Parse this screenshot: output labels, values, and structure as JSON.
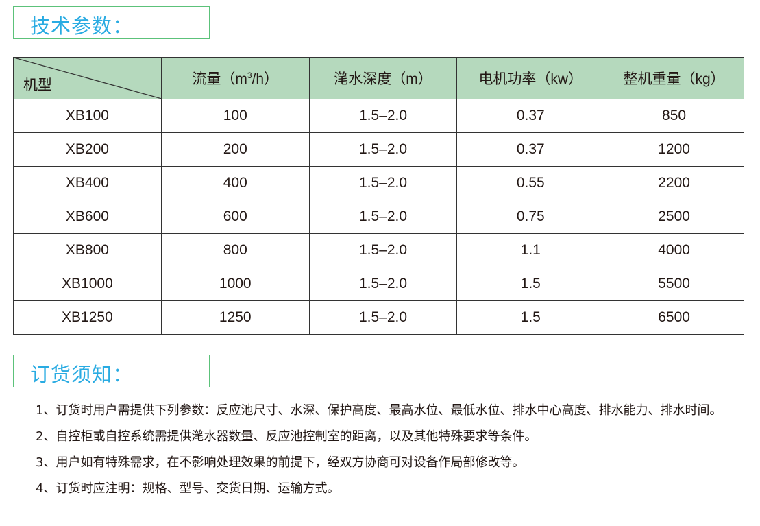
{
  "section1": {
    "title": "技术参数："
  },
  "table": {
    "header": {
      "model": "机型",
      "flow": "流量（m",
      "flow_sup": "3",
      "flow_end": "/h）",
      "depth": "滗水深度（m）",
      "power": "电机功率（kw）",
      "weight": "整机重量（kg）"
    },
    "rows": [
      [
        "XB100",
        "100",
        "1.5–2.0",
        "0.37",
        "850"
      ],
      [
        "XB200",
        "200",
        "1.5–2.0",
        "0.37",
        "1200"
      ],
      [
        "XB400",
        "400",
        "1.5–2.0",
        "0.55",
        "2200"
      ],
      [
        "XB600",
        "600",
        "1.5–2.0",
        "0.75",
        "2500"
      ],
      [
        "XB800",
        "800",
        "1.5–2.0",
        "1.1",
        "4000"
      ],
      [
        "XB1000",
        "1000",
        "1.5–2.0",
        "1.5",
        "5500"
      ],
      [
        "XB1250",
        "1250",
        "1.5–2.0",
        "1.5",
        "6500"
      ]
    ]
  },
  "section2": {
    "title": "订货须知：",
    "notes": [
      "1、订货时用户需提供下列参数：反应池尺寸、水深、保护高度、最高水位、最低水位、排水中心高度、排水能力、排水时间。",
      "2、自控柜或自控系统需提供滗水器数量、反应池控制室的距离，以及其他特殊要求等条件。",
      "3、用户如有特殊需求，在不影响处理效果的前提下，经双方协商可对设备作局部修改等。",
      "4、订货时应注明：规格、型号、交货日期、运输方式。"
    ]
  },
  "colors": {
    "title_text": "#29abe2",
    "title_border": "#5cc27a",
    "header_bg": "#b5d9bd"
  }
}
